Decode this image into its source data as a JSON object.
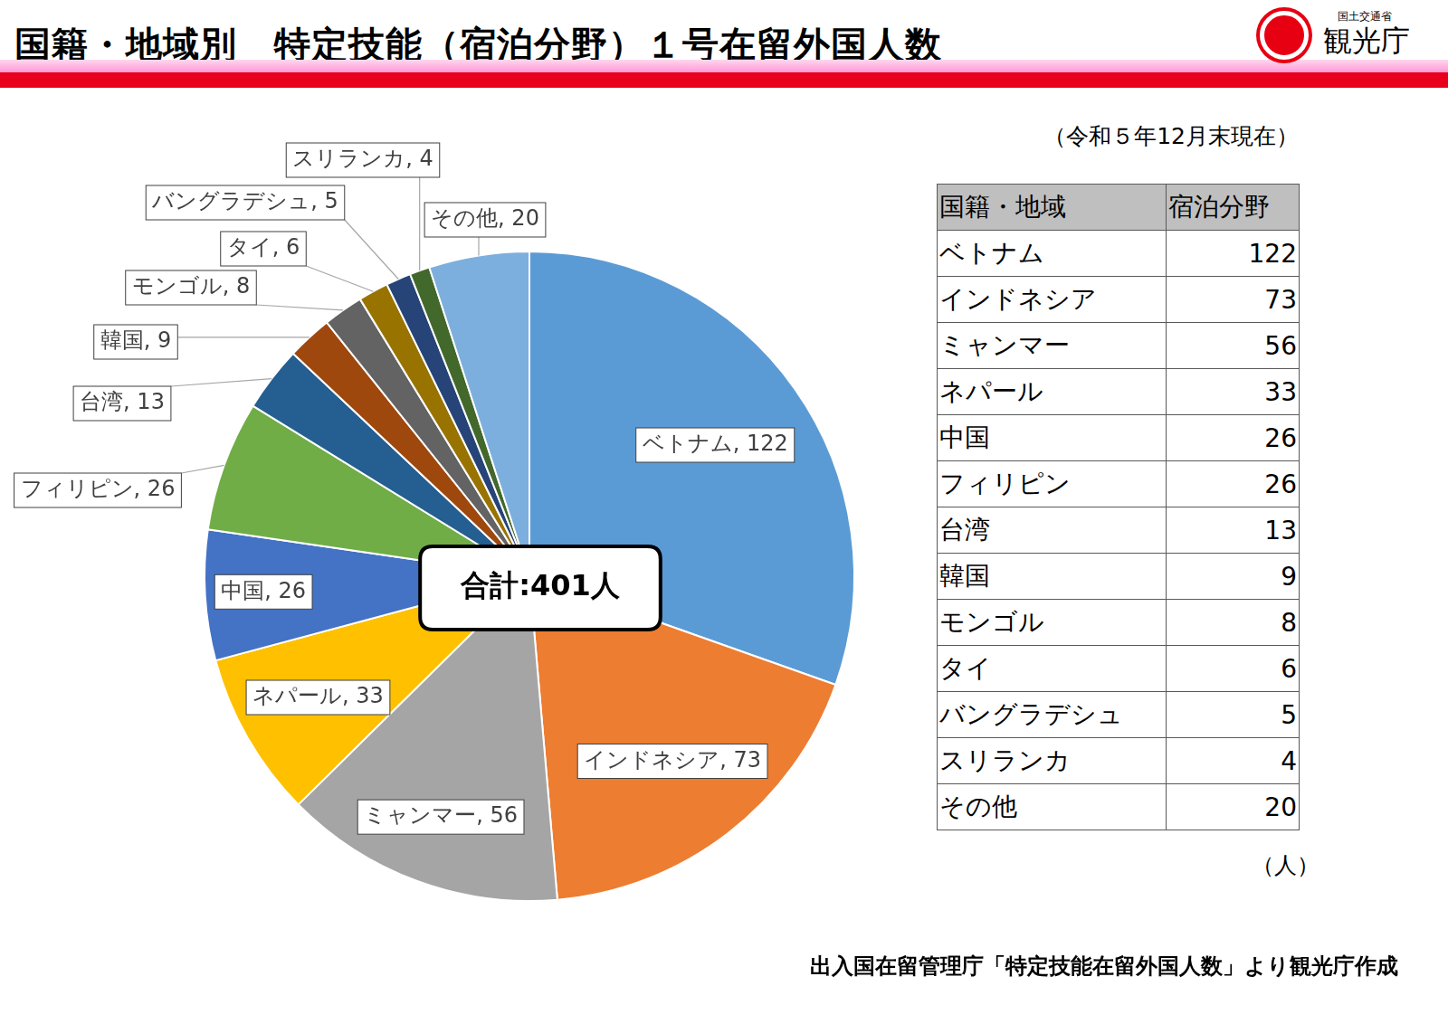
{
  "header": {
    "ministry": "国土交通省",
    "agency": "観光庁"
  },
  "chart_data": {
    "type": "pie",
    "title": "国籍・地域別　特定技能（宿泊分野）１号在留外国人数",
    "subtitle": "（令和５年12月末現在）",
    "categories": [
      "ベトナム",
      "インドネシア",
      "ミャンマー",
      "ネパール",
      "中国",
      "フィリピン",
      "台湾",
      "韓国",
      "モンゴル",
      "タイ",
      "バングラデシュ",
      "スリランカ",
      "その他"
    ],
    "values": [
      122,
      73,
      56,
      33,
      26,
      26,
      13,
      9,
      8,
      6,
      5,
      4,
      20
    ],
    "value_labels": [
      "ベトナム, 122",
      "インドネシア, 73",
      "ミャンマー, 56",
      "ネパール, 33",
      "中国, 26",
      "フィリピン, 26",
      "台湾, 13",
      "韓国, 9",
      "モンゴル, 8",
      "タイ, 6",
      "バングラデシュ, 5",
      "スリランカ, 4",
      "その他, 20"
    ],
    "colors": [
      "#5b9bd5",
      "#ed7d31",
      "#a5a5a5",
      "#ffc000",
      "#4472c4",
      "#70ad47",
      "#255e91",
      "#9e480e",
      "#636363",
      "#997300",
      "#264478",
      "#43682b",
      "#7cafdd"
    ],
    "data_labels": true,
    "annotations": [
      "合計:401人"
    ]
  },
  "table": {
    "columns": [
      "国籍・地域",
      "宿泊分野"
    ],
    "rows": [
      [
        "ベトナム",
        122
      ],
      [
        "インドネシア",
        73
      ],
      [
        "ミャンマー",
        56
      ],
      [
        "ネパール",
        33
      ],
      [
        "中国",
        26
      ],
      [
        "フィリピン",
        26
      ],
      [
        "台湾",
        13
      ],
      [
        "韓国",
        9
      ],
      [
        "モンゴル",
        8
      ],
      [
        "タイ",
        6
      ],
      [
        "バングラデシュ",
        5
      ],
      [
        "スリランカ",
        4
      ],
      [
        "その他",
        20
      ]
    ],
    "unit": "（人）"
  },
  "source": "出入国在留管理庁「特定技能在留外国人数」より観光庁作成"
}
